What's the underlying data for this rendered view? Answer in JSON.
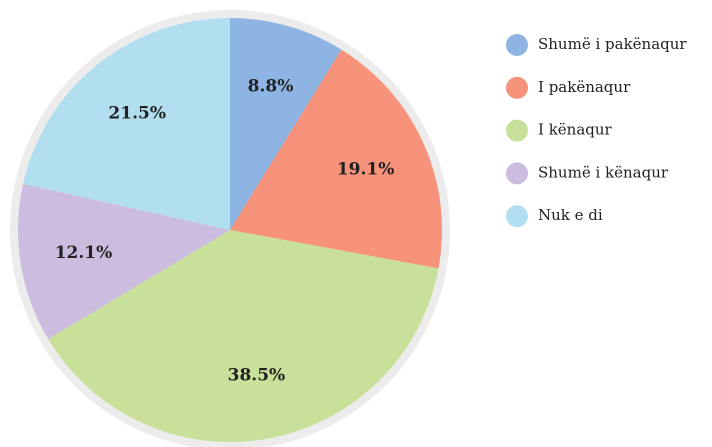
{
  "chart_data": {
    "type": "pie",
    "categories": [
      "Shumë i pakënaqur",
      "I pakënaqur",
      "I kënaqur",
      "Shumë i kënaqur",
      "Nuk e di"
    ],
    "values": [
      8.8,
      19.1,
      38.5,
      12.1,
      21.5
    ],
    "value_labels": [
      "8.8%",
      "19.1%",
      "38.5%",
      "12.1%",
      "21.5%"
    ],
    "colors": [
      "#8db4e2",
      "#f7937a",
      "#c9e09a",
      "#ccbde0",
      "#b1dff0"
    ],
    "legend": "right"
  }
}
